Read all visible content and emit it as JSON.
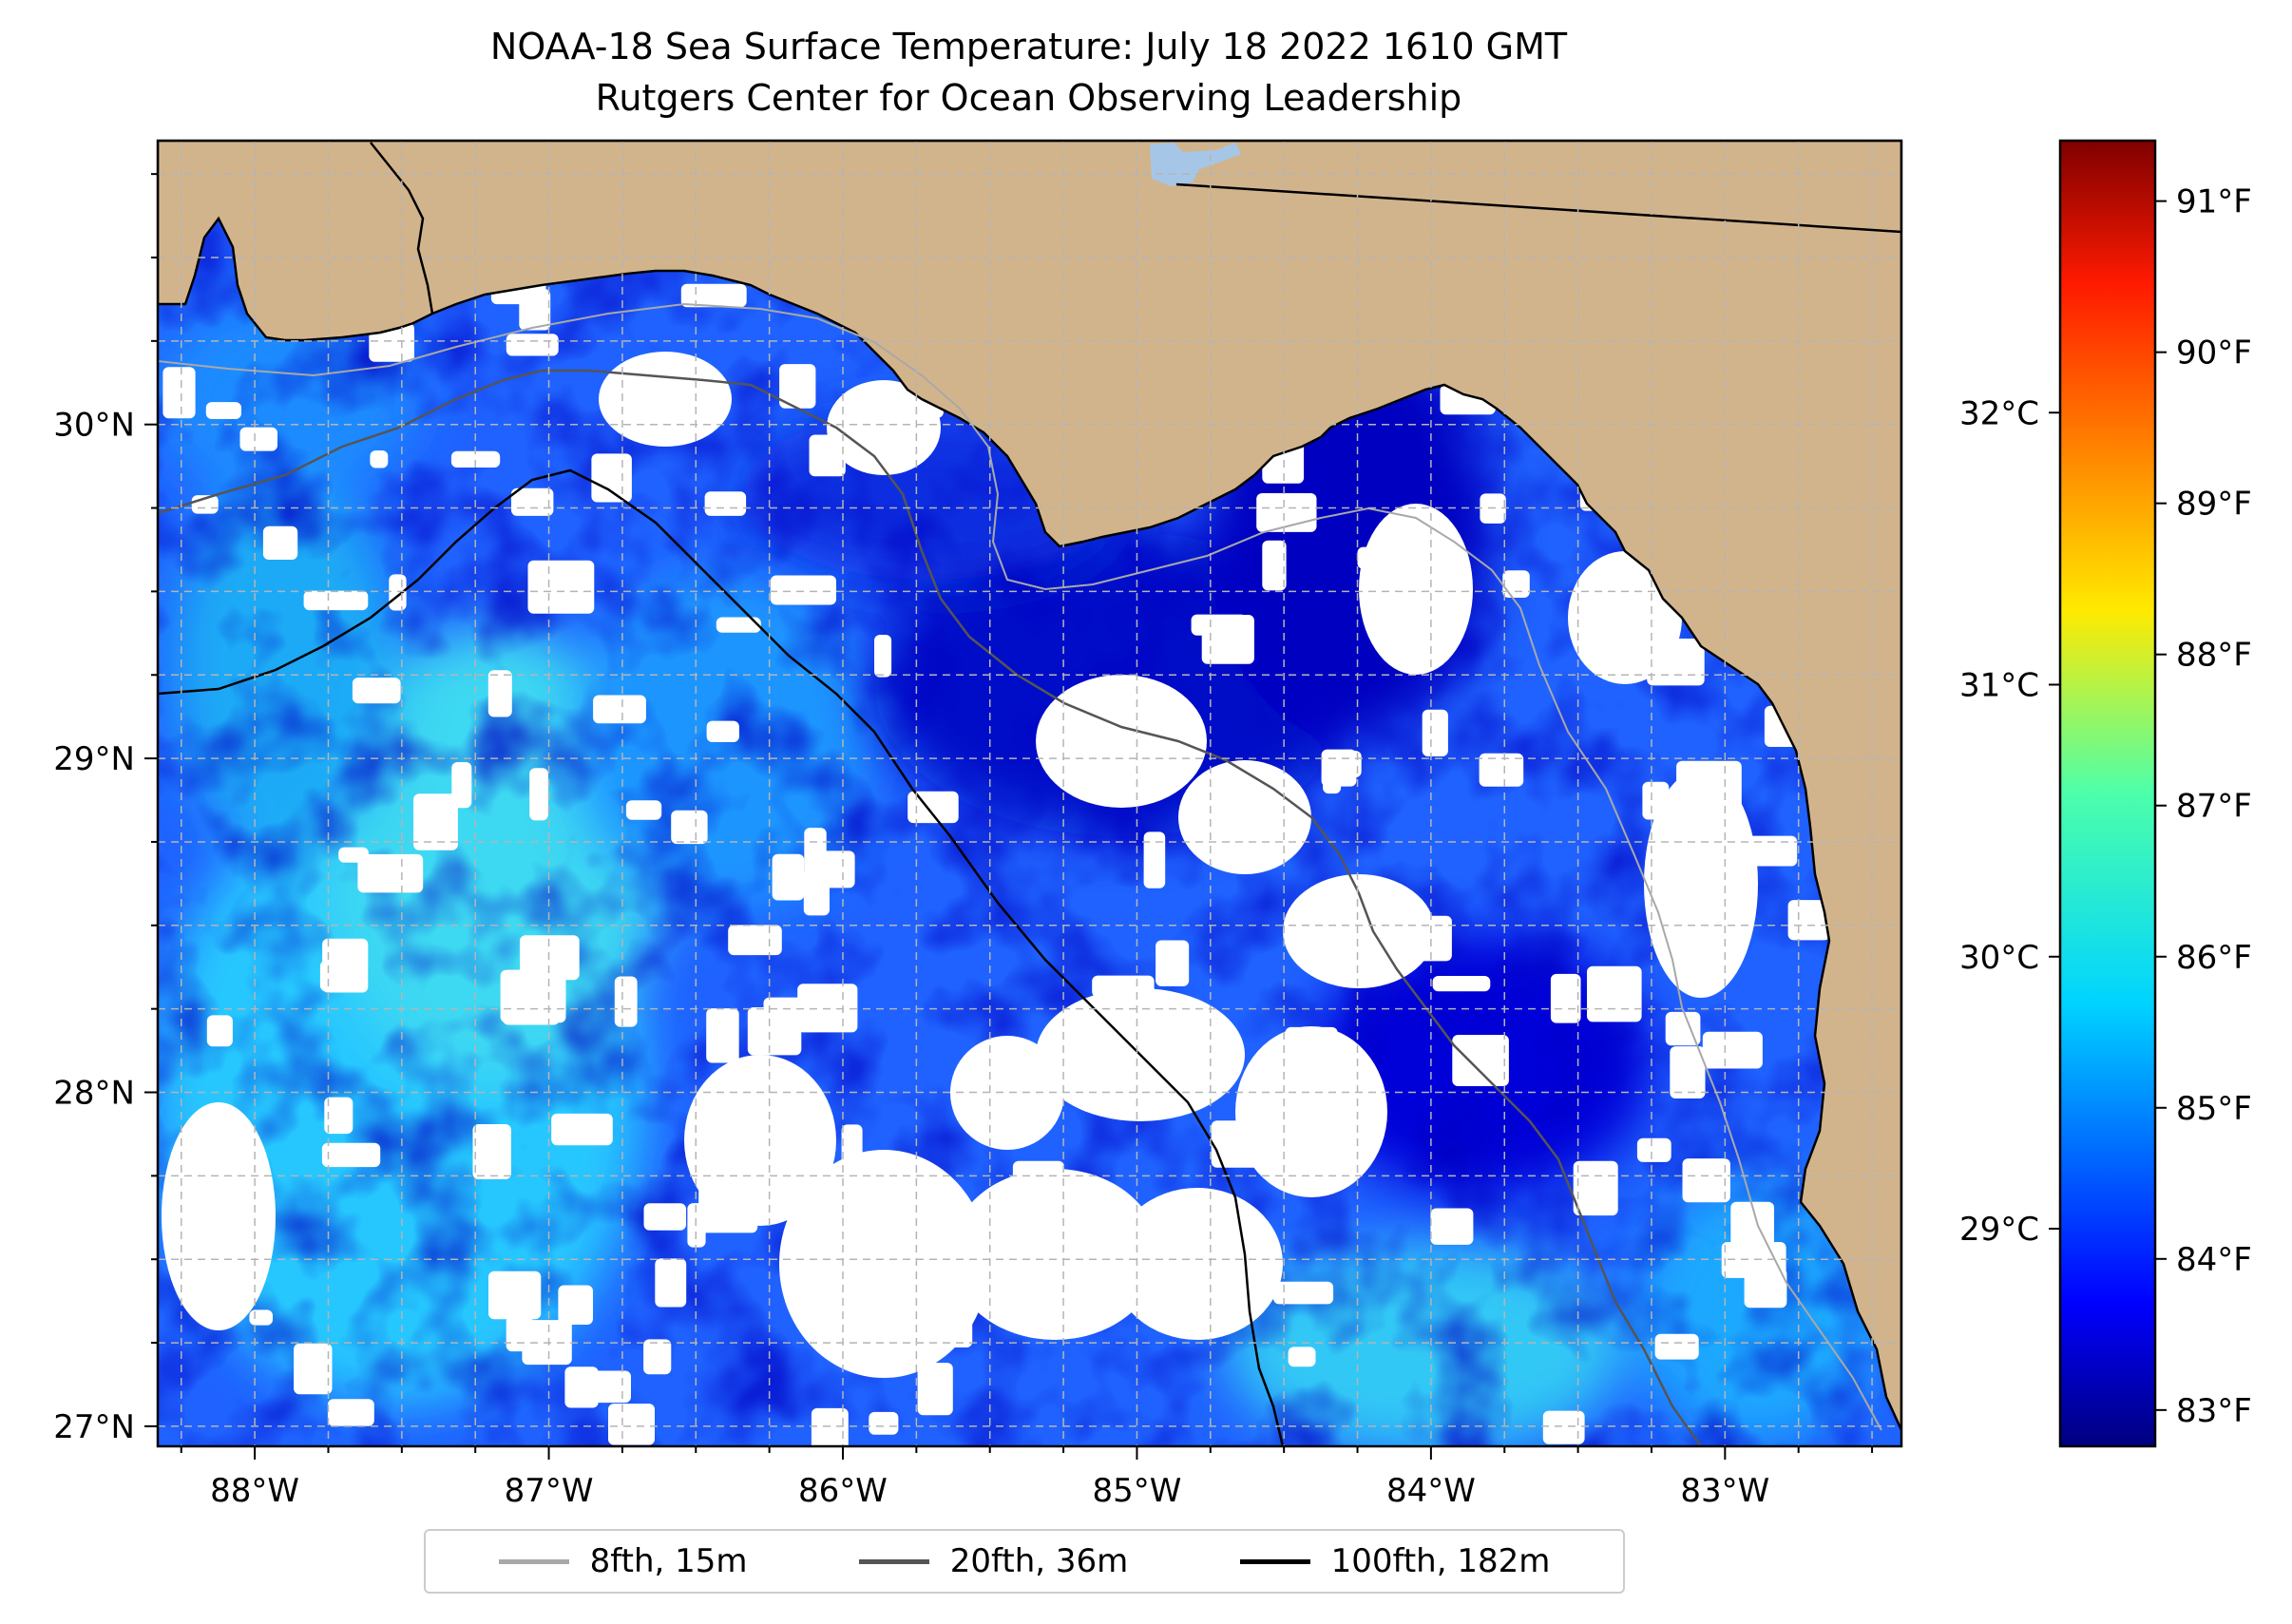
{
  "title": "NOAA-18 Sea Surface Temperature: July 18 2022 1610 GMT",
  "subtitle": "Rutgers Center for Ocean Observing Leadership",
  "colors": {
    "land": "#d2b48c",
    "no_data": "#ffffff",
    "lake": "#a6c6e8",
    "graticule": "#b5b5b5"
  },
  "chart_data": {
    "type": "heatmap",
    "map_extent": {
      "lon_min": -88.33,
      "lon_max": -82.4,
      "lat_min": 26.94,
      "lat_max": 30.85
    },
    "x_ticks": [
      {
        "value": -88,
        "label": "88°W"
      },
      {
        "value": -87,
        "label": "87°W"
      },
      {
        "value": -86,
        "label": "86°W"
      },
      {
        "value": -85,
        "label": "85°W"
      },
      {
        "value": -84,
        "label": "84°W"
      },
      {
        "value": -83,
        "label": "83°W"
      }
    ],
    "y_ticks": [
      {
        "value": 27,
        "label": "27°N"
      },
      {
        "value": 28,
        "label": "28°N"
      },
      {
        "value": 29,
        "label": "29°N"
      },
      {
        "value": 30,
        "label": "30°N"
      }
    ],
    "colorbar": {
      "colormap": "jet",
      "range_c": [
        28.2,
        33.0
      ],
      "celsius_ticks": [
        {
          "value": 29,
          "label": "29°C"
        },
        {
          "value": 30,
          "label": "30°C"
        },
        {
          "value": 31,
          "label": "31°C"
        },
        {
          "value": 32,
          "label": "32°C"
        }
      ],
      "fahrenheit_ticks": [
        {
          "value": 83,
          "label": "83°F"
        },
        {
          "value": 84,
          "label": "84°F"
        },
        {
          "value": 85,
          "label": "85°F"
        },
        {
          "value": 86,
          "label": "86°F"
        },
        {
          "value": 87,
          "label": "87°F"
        },
        {
          "value": 88,
          "label": "88°F"
        },
        {
          "value": 89,
          "label": "89°F"
        },
        {
          "value": 90,
          "label": "90°F"
        },
        {
          "value": 91,
          "label": "91°F"
        }
      ]
    },
    "legend": {
      "placement": "bottom-center",
      "entries": [
        {
          "label": "8fth, 15m",
          "color": "#a8a8a8"
        },
        {
          "label": "20fth, 36m",
          "color": "#555555"
        },
        {
          "label": "100fth, 182m",
          "color": "#000000"
        }
      ]
    }
  }
}
